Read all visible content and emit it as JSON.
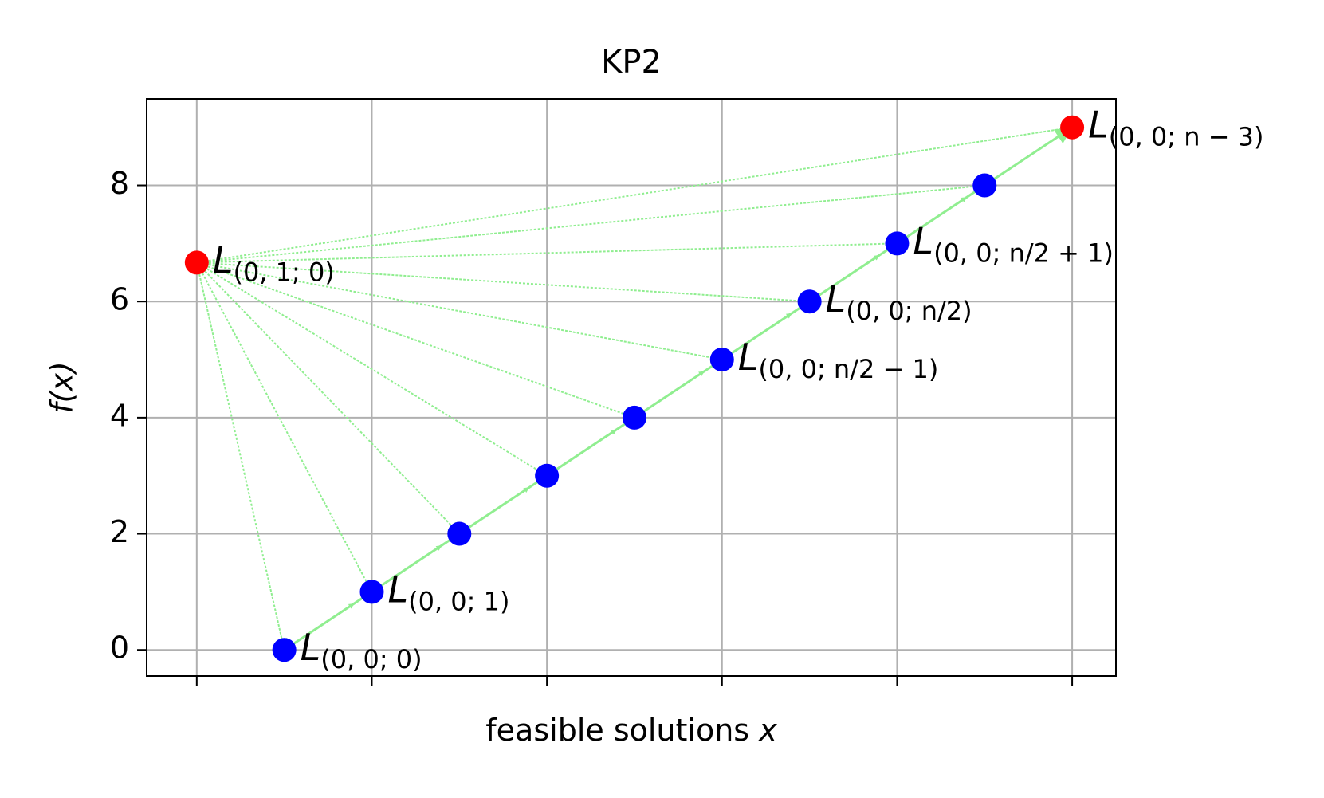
{
  "chart_data": {
    "type": "scatter",
    "title": "KP2",
    "x_label": "feasible solutions",
    "x_label_symbol": "x",
    "y_label": "f(x)",
    "xlim": [
      -0.286,
      5.25
    ],
    "ylim": [
      -0.45,
      9.49
    ],
    "xticks": [
      0,
      1,
      2,
      3,
      4,
      5
    ],
    "yticks": [
      0,
      2,
      4,
      6,
      8
    ],
    "grid": true,
    "connector_color": "#90ee90",
    "series": [
      {
        "color": "#0000ff",
        "x": [
          0.5,
          1,
          1.5,
          2,
          2.5,
          3,
          3.5,
          4,
          4.5
        ],
        "values": [
          0,
          1,
          2,
          3,
          4,
          5,
          6,
          7,
          8
        ],
        "point_labels": [
          {
            "main": "L",
            "sub": "(0, 0; 0)"
          },
          {
            "main": "L",
            "sub": "(0, 0; 1)"
          },
          null,
          null,
          null,
          {
            "main": "L",
            "sub": "(0, 0; n/2 − 1)"
          },
          {
            "main": "L",
            "sub": "(0, 0; n/2)"
          },
          {
            "main": "L",
            "sub": "(0, 0; n/2 + 1)"
          },
          null
        ]
      },
      {
        "color": "#ff0000",
        "x": [
          0,
          5
        ],
        "values": [
          6.67,
          9
        ],
        "point_labels": [
          {
            "main": "L",
            "sub": "(0, 1; 0)"
          },
          {
            "main": "L",
            "sub": "(0, 0; n − 3)"
          }
        ]
      }
    ]
  }
}
